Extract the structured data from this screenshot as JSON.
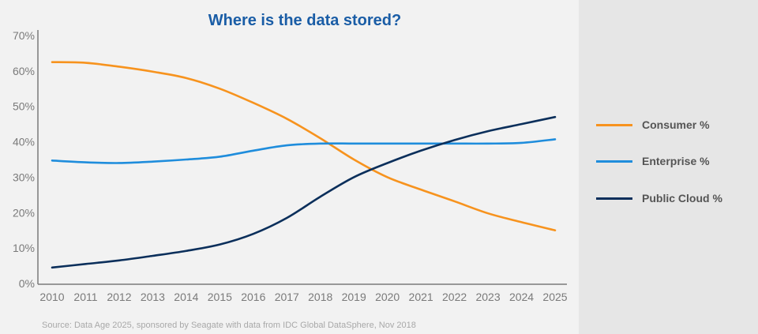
{
  "chart_data": {
    "type": "line",
    "title": "Where is the data stored?",
    "x": [
      "2010",
      "2011",
      "2012",
      "2013",
      "2014",
      "2015",
      "2016",
      "2017",
      "2018",
      "2019",
      "2020",
      "2021",
      "2022",
      "2023",
      "2024",
      "2025"
    ],
    "ylim": [
      0,
      70
    ],
    "y_ticks": [
      "0%",
      "10%",
      "20%",
      "30%",
      "40%",
      "50%",
      "60%",
      "70%"
    ],
    "series": [
      {
        "name": "Consumer %",
        "color": "#f7931e",
        "values": [
          62.5,
          62.3,
          61.2,
          59.8,
          58.0,
          55.0,
          51.0,
          46.5,
          41.0,
          35.0,
          30.0,
          26.5,
          23.2,
          19.8,
          17.3,
          15.0
        ]
      },
      {
        "name": "Enterprise %",
        "color": "#1f8ddc",
        "values": [
          34.7,
          34.2,
          34.0,
          34.4,
          35.0,
          35.8,
          37.5,
          39.0,
          39.5,
          39.5,
          39.5,
          39.5,
          39.5,
          39.5,
          39.7,
          40.7
        ]
      },
      {
        "name": "Public Cloud %",
        "color": "#0b2f5b",
        "values": [
          4.5,
          5.5,
          6.5,
          7.8,
          9.2,
          11.0,
          14.0,
          18.5,
          24.5,
          30.0,
          34.0,
          37.5,
          40.5,
          43.0,
          45.0,
          47.0
        ]
      }
    ],
    "grid": false,
    "legend_position": "right",
    "source": "Source: Data Age 2025, sponsored by Seagate with data from IDC Global DataSphere, Nov 2018"
  }
}
